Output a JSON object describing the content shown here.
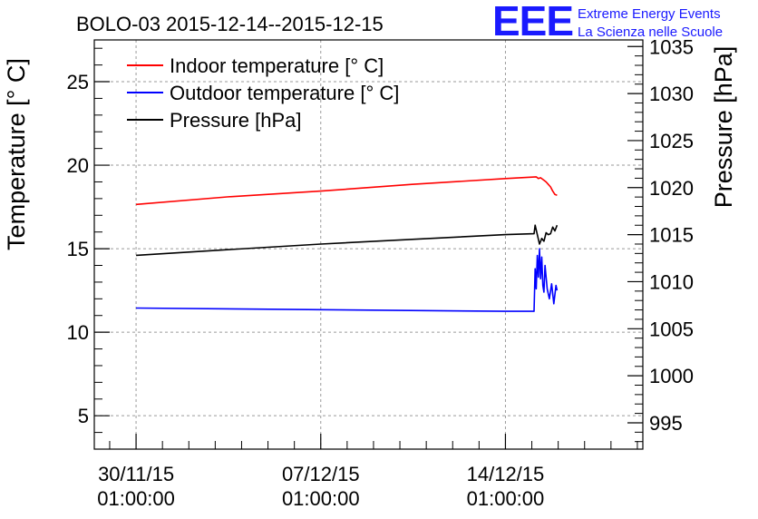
{
  "header": {
    "title": "BOLO-03 2015-12-14--2015-12-15",
    "logo_letters": "EEE",
    "logo_line1": "Extreme Energy Events",
    "logo_line2": "La Scienza nelle Scuole",
    "logo_color": "#1a1aff"
  },
  "chart_data": {
    "type": "line",
    "title": "BOLO-03 2015-12-14--2015-12-15",
    "ylabel": "Temperature [° C]",
    "y2label": "Pressure [hPa]",
    "ylim": [
      3,
      27.5
    ],
    "y2lim": [
      992.2,
      1035.7
    ],
    "xlim": [
      "2015-11-28 11:00",
      "2015-12-19 06:00"
    ],
    "grid": true,
    "legend_position": "top-left",
    "y_ticks": [
      5,
      10,
      15,
      20,
      25
    ],
    "y2_ticks": [
      995,
      1000,
      1005,
      1010,
      1015,
      1020,
      1025,
      1030,
      1035
    ],
    "x_ticks": [
      {
        "date": "30/11/15",
        "time": "01:00:00",
        "x": "2015-11-30 01:00"
      },
      {
        "date": "07/12/15",
        "time": "01:00:00",
        "x": "2015-12-07 01:00"
      },
      {
        "date": "14/12/15",
        "time": "01:00:00",
        "x": "2015-12-14 01:00"
      }
    ],
    "series": [
      {
        "name": "Indoor temperature [° C]",
        "color": "#ff0000",
        "axis": "left",
        "points": [
          [
            "2015-11-30 01:00",
            17.65
          ],
          [
            "2015-12-03 12:00",
            18.1
          ],
          [
            "2015-12-07 01:00",
            18.45
          ],
          [
            "2015-12-10 12:00",
            18.85
          ],
          [
            "2015-12-14 01:00",
            19.2
          ],
          [
            "2015-12-15 05:00",
            19.3
          ],
          [
            "2015-12-15 07:00",
            19.2
          ],
          [
            "2015-12-15 09:00",
            19.25
          ],
          [
            "2015-12-15 12:00",
            19.1
          ],
          [
            "2015-12-15 14:00",
            19.0
          ],
          [
            "2015-12-15 16:00",
            18.85
          ],
          [
            "2015-12-15 18:00",
            18.7
          ],
          [
            "2015-12-15 20:00",
            18.45
          ],
          [
            "2015-12-15 22:00",
            18.25
          ],
          [
            "2015-12-16 00:00",
            18.2
          ]
        ]
      },
      {
        "name": "Outdoor temperature [° C]",
        "color": "#0000ff",
        "axis": "left",
        "points": [
          [
            "2015-11-30 01:00",
            11.45
          ],
          [
            "2015-12-07 01:00",
            11.35
          ],
          [
            "2015-12-14 01:00",
            11.25
          ],
          [
            "2015-12-15 03:00",
            11.25
          ],
          [
            "2015-12-15 04:00",
            13.8
          ],
          [
            "2015-12-15 05:00",
            12.6
          ],
          [
            "2015-12-15 06:00",
            14.6
          ],
          [
            "2015-12-15 07:00",
            13.3
          ],
          [
            "2015-12-15 08:00",
            15.0
          ],
          [
            "2015-12-15 09:00",
            13.2
          ],
          [
            "2015-12-15 10:00",
            14.5
          ],
          [
            "2015-12-15 11:00",
            12.8
          ],
          [
            "2015-12-15 12:00",
            12.4
          ],
          [
            "2015-12-15 13:00",
            14.0
          ],
          [
            "2015-12-15 15:00",
            12.6
          ],
          [
            "2015-12-15 17:00",
            12.0
          ],
          [
            "2015-12-15 19:00",
            12.9
          ],
          [
            "2015-12-15 21:00",
            11.7
          ],
          [
            "2015-12-15 23:00",
            12.8
          ],
          [
            "2015-12-16 00:00",
            12.5
          ]
        ]
      },
      {
        "name": "Pressure [hPa]",
        "color": "#000000",
        "axis": "right",
        "points": [
          [
            "2015-11-30 01:00",
            1012.8
          ],
          [
            "2015-12-03 12:00",
            1013.4
          ],
          [
            "2015-12-07 01:00",
            1014.0
          ],
          [
            "2015-12-10 12:00",
            1014.5
          ],
          [
            "2015-12-14 01:00",
            1015.0
          ],
          [
            "2015-12-15 03:00",
            1015.1
          ],
          [
            "2015-12-15 04:00",
            1016.0
          ],
          [
            "2015-12-15 06:00",
            1015.0
          ],
          [
            "2015-12-15 08:00",
            1014.0
          ],
          [
            "2015-12-15 10:00",
            1014.6
          ],
          [
            "2015-12-15 12:00",
            1014.3
          ],
          [
            "2015-12-15 14:00",
            1015.2
          ],
          [
            "2015-12-15 16:00",
            1015.0
          ],
          [
            "2015-12-15 18:00",
            1015.1
          ],
          [
            "2015-12-15 20:00",
            1015.8
          ],
          [
            "2015-12-15 22:00",
            1015.4
          ],
          [
            "2015-12-16 00:00",
            1016.0
          ]
        ]
      }
    ]
  }
}
